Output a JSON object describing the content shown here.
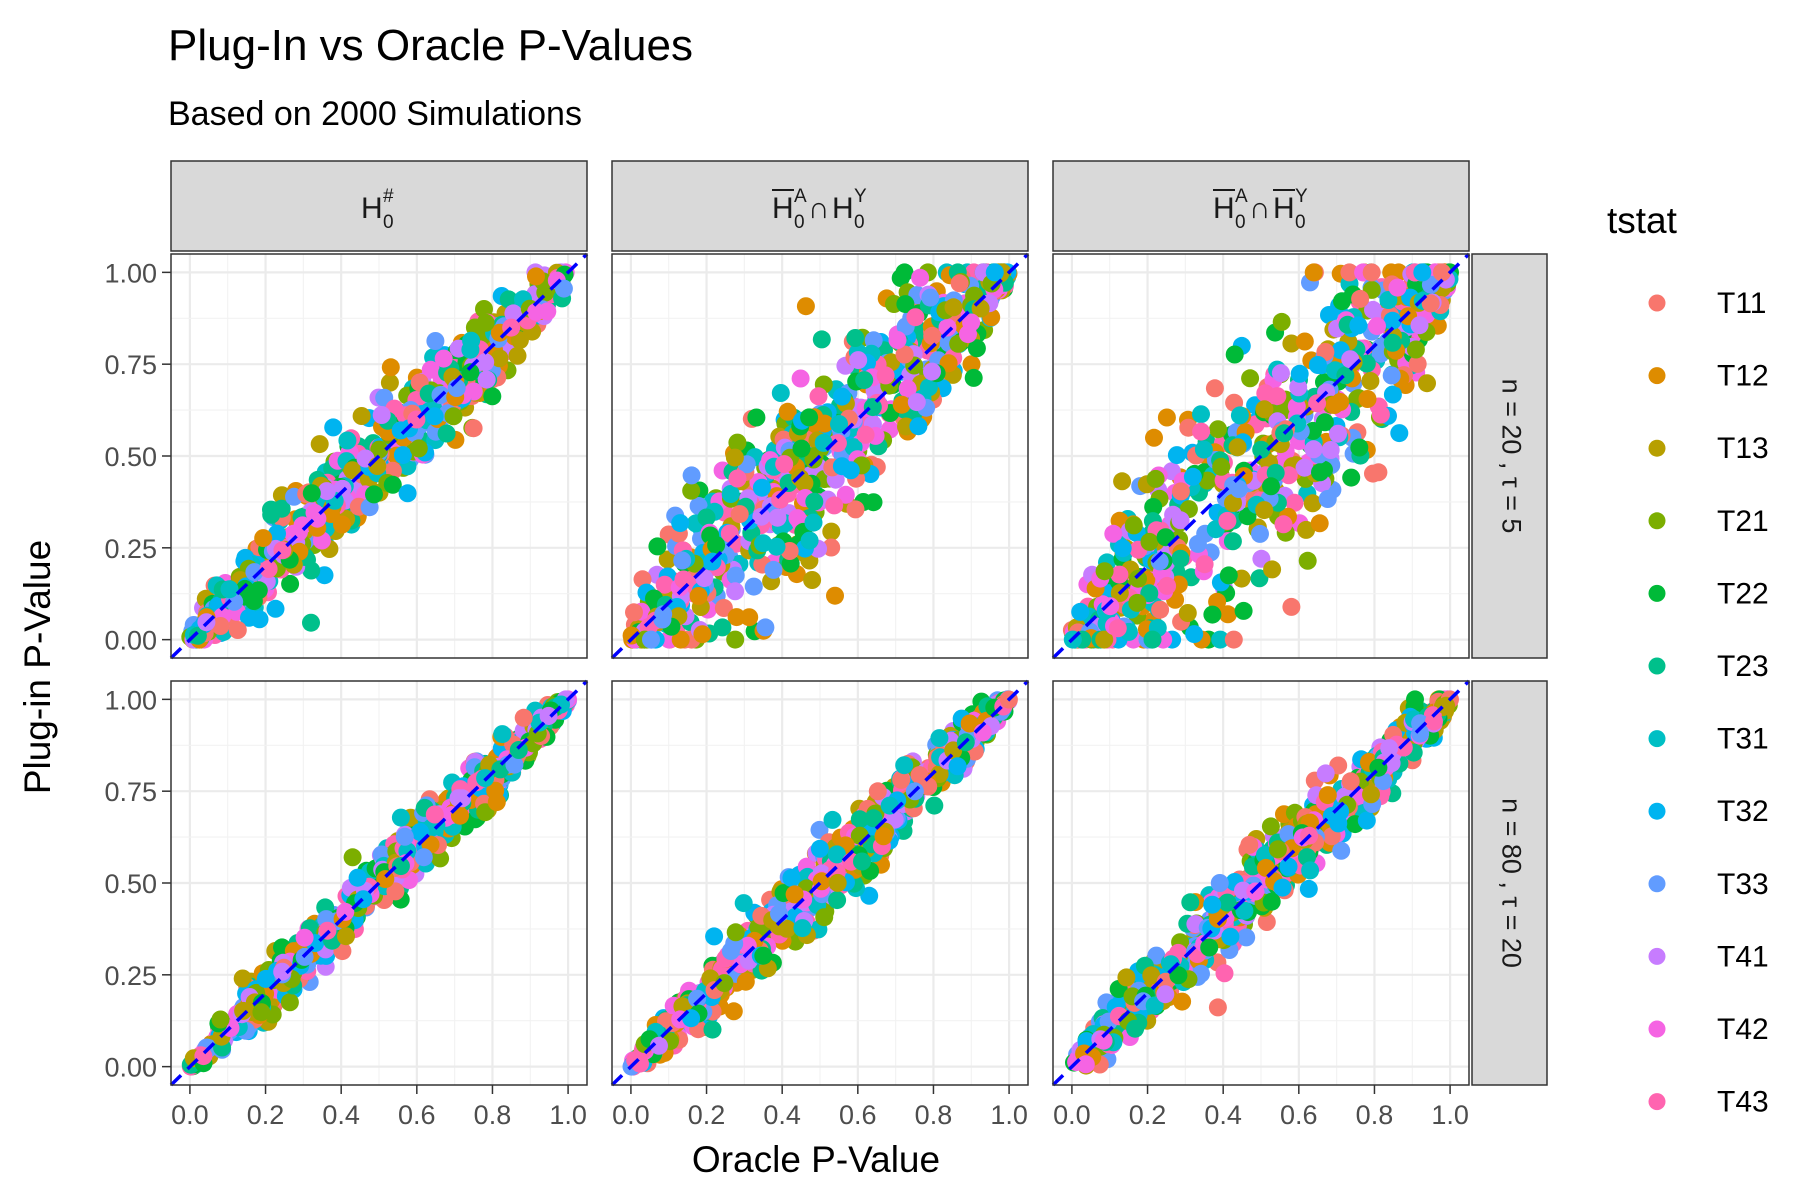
{
  "chart_data": {
    "type": "scatter",
    "title": "Plug-In vs Oracle P-Values",
    "subtitle": "Based on 2000 Simulations",
    "xlabel": "Oracle P-Value",
    "ylabel": "Plug-in P-Value",
    "xlim": [
      0,
      1
    ],
    "ylim": [
      0,
      1
    ],
    "x_ticks": [
      "0.0",
      "0.2",
      "0.4",
      "0.6",
      "0.8",
      "1.0"
    ],
    "y_ticks": [
      "0.00",
      "0.25",
      "0.50",
      "0.75",
      "1.00"
    ],
    "grid": true,
    "reference_line": {
      "type": "identity",
      "style": "dashed",
      "color": "#0000ff"
    },
    "legend": {
      "title": "tstat",
      "position": "right",
      "entries": [
        {
          "name": "T11",
          "color": "#F8766D"
        },
        {
          "name": "T12",
          "color": "#DE8C00"
        },
        {
          "name": "T13",
          "color": "#B79F00"
        },
        {
          "name": "T21",
          "color": "#7CAE00"
        },
        {
          "name": "T22",
          "color": "#00BA38"
        },
        {
          "name": "T23",
          "color": "#00C08B"
        },
        {
          "name": "T31",
          "color": "#00BFC4"
        },
        {
          "name": "T32",
          "color": "#00B4F0"
        },
        {
          "name": "T33",
          "color": "#619CFF"
        },
        {
          "name": "T41",
          "color": "#C77CFF"
        },
        {
          "name": "T42",
          "color": "#F564E3"
        },
        {
          "name": "T43",
          "color": "#FF64B0"
        }
      ]
    },
    "facet_columns": [
      {
        "base": "H",
        "sup": "#",
        "sub": "0",
        "over": false
      },
      {
        "parts": [
          {
            "base": "H",
            "sup": "A",
            "sub": "0",
            "over": true
          },
          {
            "op": "∩"
          },
          {
            "base": "H",
            "sup": "Y",
            "sub": "0",
            "over": false
          }
        ]
      },
      {
        "parts": [
          {
            "base": "H",
            "sup": "A",
            "sub": "0",
            "over": true
          },
          {
            "op": "∩"
          },
          {
            "base": "H",
            "sup": "Y",
            "sub": "0",
            "over": true
          }
        ]
      }
    ],
    "facet_rows": [
      "n = 20 , τ = 5",
      "n = 80 , τ = 20"
    ],
    "panel_spread": [
      [
        0.075,
        0.14,
        0.17
      ],
      [
        0.045,
        0.055,
        0.06
      ]
    ],
    "points_per_series_per_panel": 55
  }
}
